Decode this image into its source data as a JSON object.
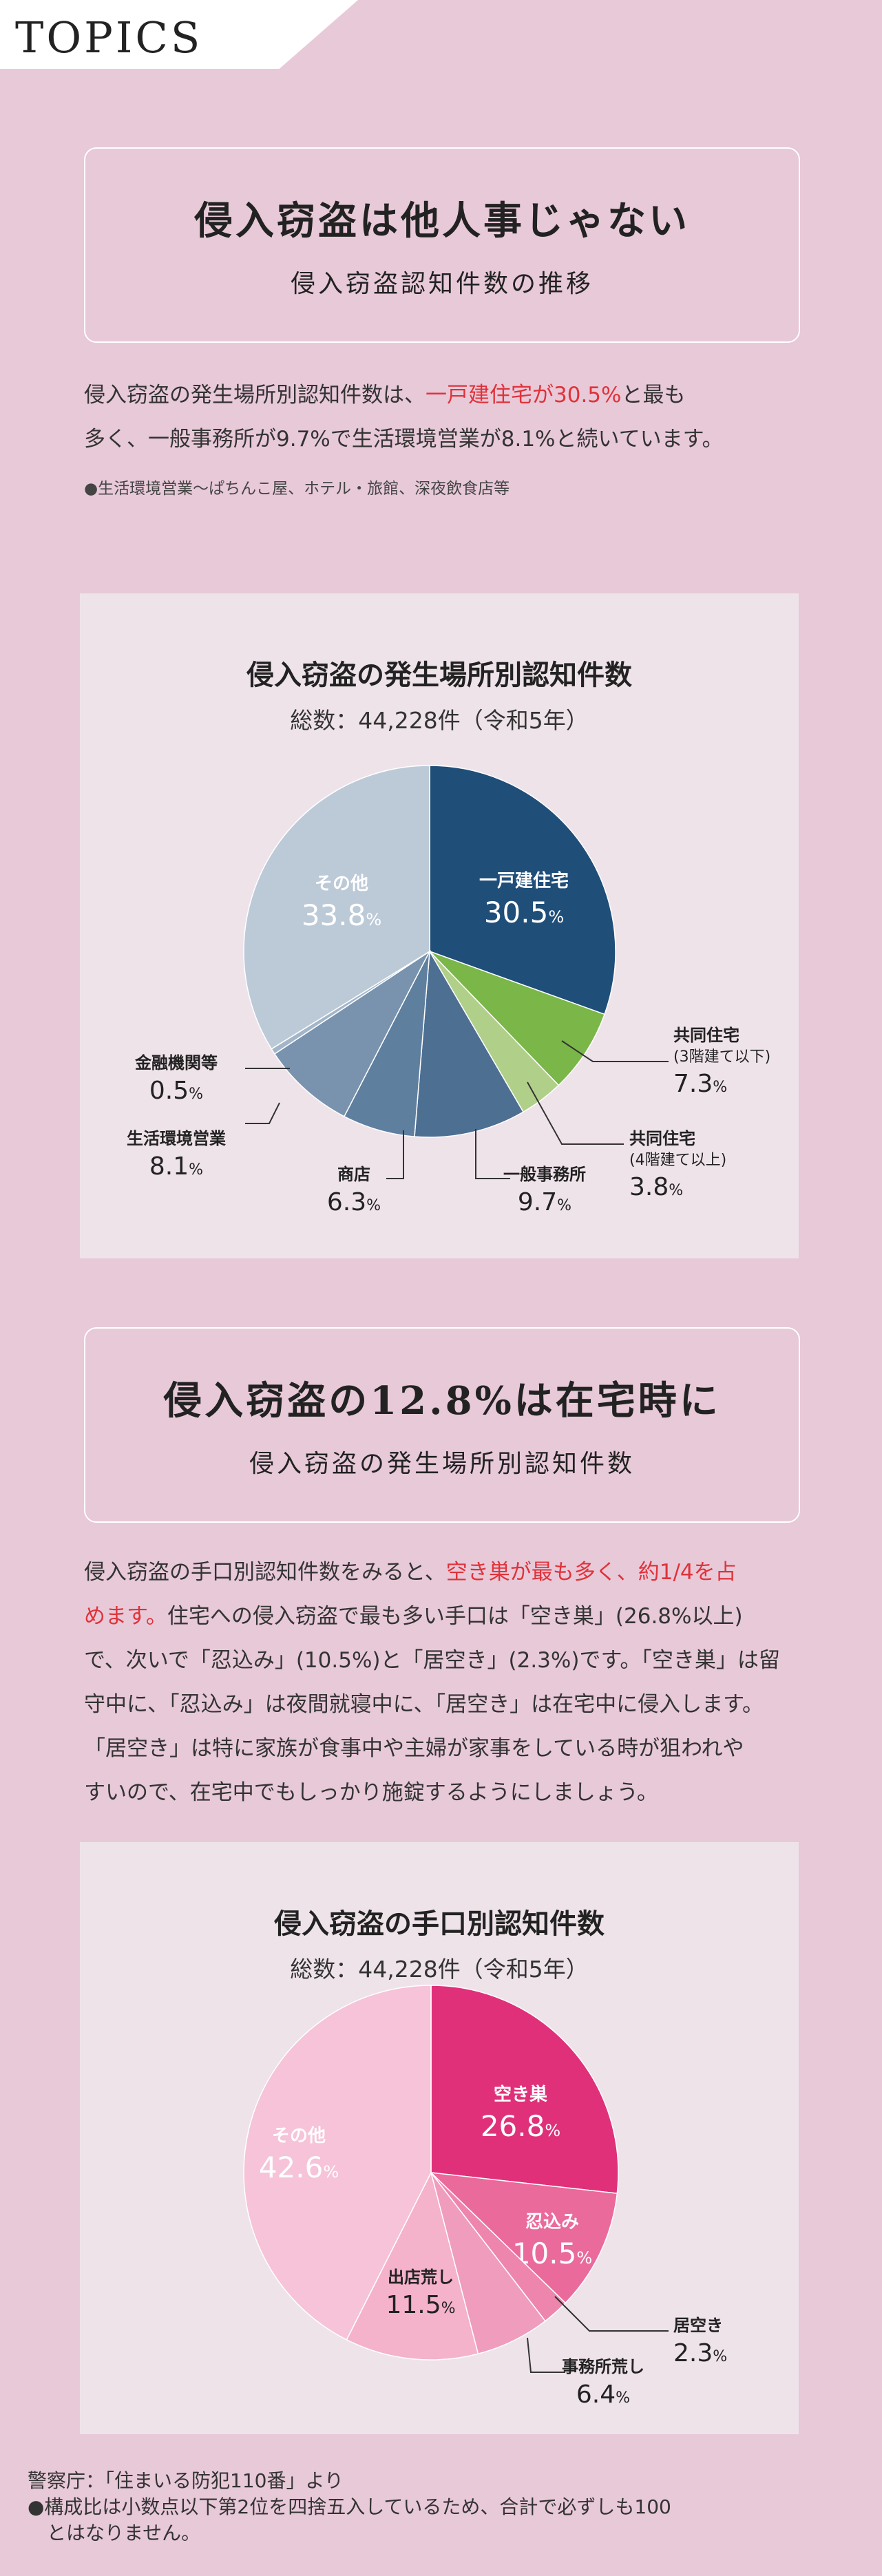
{
  "topics_label": "TOPICS",
  "section1": {
    "title": "侵入窃盗は他人事じゃない",
    "subtitle": "侵入窃盗認知件数の推移",
    "para_line1_a": "侵入窃盗の発生場所別認知件数は、",
    "para_line1_hl": "一戸建住宅が30.5%",
    "para_line1_b": "と最も",
    "para_line2": "多く、一般事務所が9.7%で生活環境営業が8.1%と続いています。",
    "note": "●生活環境営業～ぱちんこ屋、ホテル・旅館、深夜飲食店等"
  },
  "section2": {
    "title": "侵入窃盗の12.8%は在宅時に",
    "subtitle": "侵入窃盗の発生場所別認知件数",
    "para_line1_a": "侵入窃盗の手口別認知件数をみると、",
    "para_line1_hl": "空き巣が最も多く、約1/4を占",
    "para_line2_hl": "めます。",
    "para_line2_b": "住宅への侵入窃盗で最も多い手口は「空き巣」(26.8%以上)",
    "para_line3": "で、次いで「忍込み」(10.5%)と「居空き」(2.3%)です。「空き巣」は留",
    "para_line4": "守中に、「忍込み」は夜間就寝中に、「居空き」は在宅中に侵入します。",
    "para_line5": "「居空き」は特に家族が食事中や主婦が家事をしている時が狙われや",
    "para_line6": "すいので、在宅中でもしっかり施錠するようにしましょう。"
  },
  "source": {
    "line1": "警察庁：「住まいる防犯110番」より",
    "line2": "●構成比は小数点以下第2位を四捨五入しているため、合計で必ずしも100",
    "line3": "　とはなりません。"
  },
  "chart_data": [
    {
      "type": "pie",
      "title": "侵入窃盗の発生場所別認知件数",
      "subtitle": "総数：44,228件（令和5年）",
      "slices": [
        {
          "label": "一戸建住宅",
          "value": 30.5,
          "color": "#1f4e79"
        },
        {
          "label": "共同住宅",
          "sublabel": "(3階建て以下)",
          "value": 7.3,
          "color": "#7ab648"
        },
        {
          "label": "共同住宅",
          "sublabel": "(4階建て以上)",
          "value": 3.8,
          "color": "#b0d08a"
        },
        {
          "label": "一般事務所",
          "value": 9.7,
          "color": "#4d6f92"
        },
        {
          "label": "商店",
          "value": 6.3,
          "color": "#5f7f9f"
        },
        {
          "label": "生活環境営業",
          "value": 8.1,
          "color": "#7993ae"
        },
        {
          "label": "金融機関等",
          "value": 0.5,
          "color": "#a3b5c8"
        },
        {
          "label": "その他",
          "value": 33.8,
          "color": "#bccad8"
        }
      ]
    },
    {
      "type": "pie",
      "title": "侵入窃盗の手口別認知件数",
      "subtitle": "総数：44,228件（令和5年）",
      "slices": [
        {
          "label": "空き巣",
          "value": 26.8,
          "color": "#e0307a"
        },
        {
          "label": "忍込み",
          "value": 10.5,
          "color": "#ea6a9c"
        },
        {
          "label": "居空き",
          "value": 2.3,
          "color": "#ee85ad"
        },
        {
          "label": "事務所荒し",
          "value": 6.4,
          "color": "#f09cbd"
        },
        {
          "label": "出店荒し",
          "value": 11.5,
          "color": "#f4b2cb"
        },
        {
          "label": "その他",
          "value": 42.6,
          "color": "#f6c3d8"
        }
      ]
    }
  ]
}
